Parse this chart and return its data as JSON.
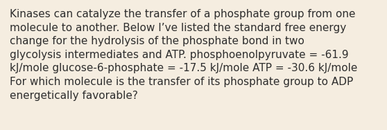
{
  "background_color": "#f5ede0",
  "text_color": "#2d2d2d",
  "text": "Kinases can catalyze the transfer of a phosphate group from one\nmolecule to another. Below I’ve listed the standard free energy\nchange for the hydrolysis of the phosphate bond in two\nglycolysis intermediates and ATP. phosphoenolpyruvate = -61.9\nkJ/mole glucose-6-phosphate = -17.5 kJ/mole ATP = -30.6 kJ/mole\nFor which molecule is the transfer of its phosphate group to ADP\nenergetically favorable?",
  "font_size": 11.0,
  "fig_width": 5.58,
  "fig_height": 1.88,
  "dpi": 100
}
